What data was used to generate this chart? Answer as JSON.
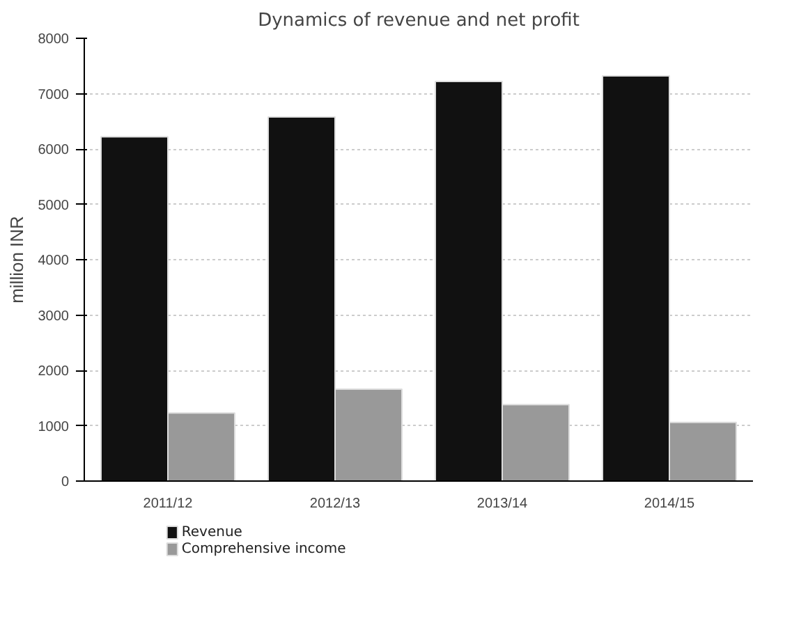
{
  "chart_data": {
    "type": "bar",
    "title": "Dynamics of revenue and net profit",
    "ylabel": "million INR",
    "categories": [
      "2011/12",
      "2012/13",
      "2013/14",
      "2014/15"
    ],
    "series": [
      {
        "name": "Revenue",
        "color": "#111111",
        "values": [
          6220,
          6580,
          7220,
          7320
        ]
      },
      {
        "name": "Comprehensive income",
        "color": "#999999",
        "values": [
          1230,
          1660,
          1380,
          1060
        ]
      }
    ],
    "ylim": [
      0,
      8000
    ],
    "yticks": [
      0,
      1000,
      2000,
      3000,
      4000,
      5000,
      6000,
      7000,
      8000
    ],
    "grid": "y",
    "legend": "bottom left"
  }
}
